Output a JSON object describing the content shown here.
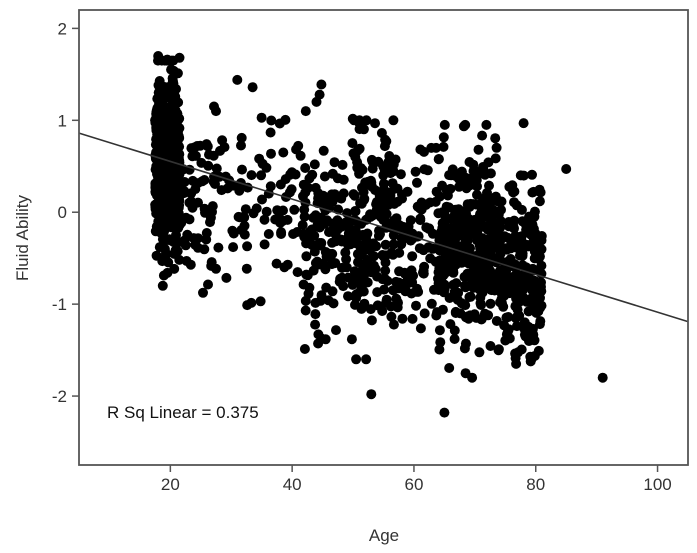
{
  "chart_data": {
    "type": "scatter",
    "title": "",
    "xlabel": "Age",
    "ylabel": "Fluid Ability",
    "xlim": [
      5,
      105
    ],
    "ylim": [
      -2.75,
      2.2
    ],
    "xticks": [
      20,
      40,
      60,
      80,
      100
    ],
    "yticks": [
      2,
      1,
      0,
      -1,
      -2
    ],
    "xtick_labels": [
      "20",
      "40",
      "60",
      "80",
      "100"
    ],
    "ytick_labels": [
      "2",
      "1",
      "0",
      "-1",
      "-2"
    ],
    "grid": false,
    "legend": "none",
    "annotation": "R Sq Linear = 0.375",
    "fit_line": {
      "x": [
        5,
        105
      ],
      "y": [
        0.86,
        -1.19
      ]
    },
    "colors": {
      "points": "#000000",
      "fit_line": "#333333",
      "frame": "#555555",
      "background": "#ffffff"
    },
    "outliers": [
      {
        "x": 91,
        "y": -1.8
      },
      {
        "x": 85,
        "y": 0.47
      },
      {
        "x": 78,
        "y": 0.97
      },
      {
        "x": 65,
        "y": -2.18
      },
      {
        "x": 53,
        "y": -1.98
      },
      {
        "x": 31,
        "y": 1.44
      },
      {
        "x": 33.5,
        "y": 1.36
      },
      {
        "x": 44.8,
        "y": 1.39
      },
      {
        "x": 44.5,
        "y": 1.28
      },
      {
        "x": 44,
        "y": 1.2
      },
      {
        "x": 27.5,
        "y": 1.1
      },
      {
        "x": 18,
        "y": 1.7
      },
      {
        "x": 19.5,
        "y": 1.66
      },
      {
        "x": 21.5,
        "y": 1.68
      }
    ],
    "clusters": [
      {
        "xmin": 17.5,
        "xmax": 21.5,
        "ymin": -0.8,
        "ymax": 1.65,
        "mean": 0.55,
        "sd": 0.48,
        "n": 470
      },
      {
        "xmin": 21.5,
        "xmax": 30,
        "ymin": -1.1,
        "ymax": 1.15,
        "mean": 0.1,
        "sd": 0.5,
        "n": 70
      },
      {
        "xmin": 30,
        "xmax": 42,
        "ymin": -1.3,
        "ymax": 1.2,
        "mean": 0.0,
        "sd": 0.55,
        "n": 80
      },
      {
        "xmin": 42,
        "xmax": 50,
        "ymin": -1.5,
        "ymax": 1.1,
        "mean": -0.2,
        "sd": 0.55,
        "n": 130
      },
      {
        "xmin": 50,
        "xmax": 58,
        "ymin": -1.6,
        "ymax": 1.0,
        "mean": -0.15,
        "sd": 0.55,
        "n": 190
      },
      {
        "xmin": 58,
        "xmax": 64,
        "ymin": -1.6,
        "ymax": 0.7,
        "mean": -0.35,
        "sd": 0.5,
        "n": 80
      },
      {
        "xmin": 64,
        "xmax": 74,
        "ymin": -1.8,
        "ymax": 0.95,
        "mean": -0.35,
        "sd": 0.5,
        "n": 340
      },
      {
        "xmin": 74,
        "xmax": 81,
        "ymin": -1.65,
        "ymax": 0.6,
        "mean": -0.6,
        "sd": 0.45,
        "n": 220
      }
    ]
  }
}
